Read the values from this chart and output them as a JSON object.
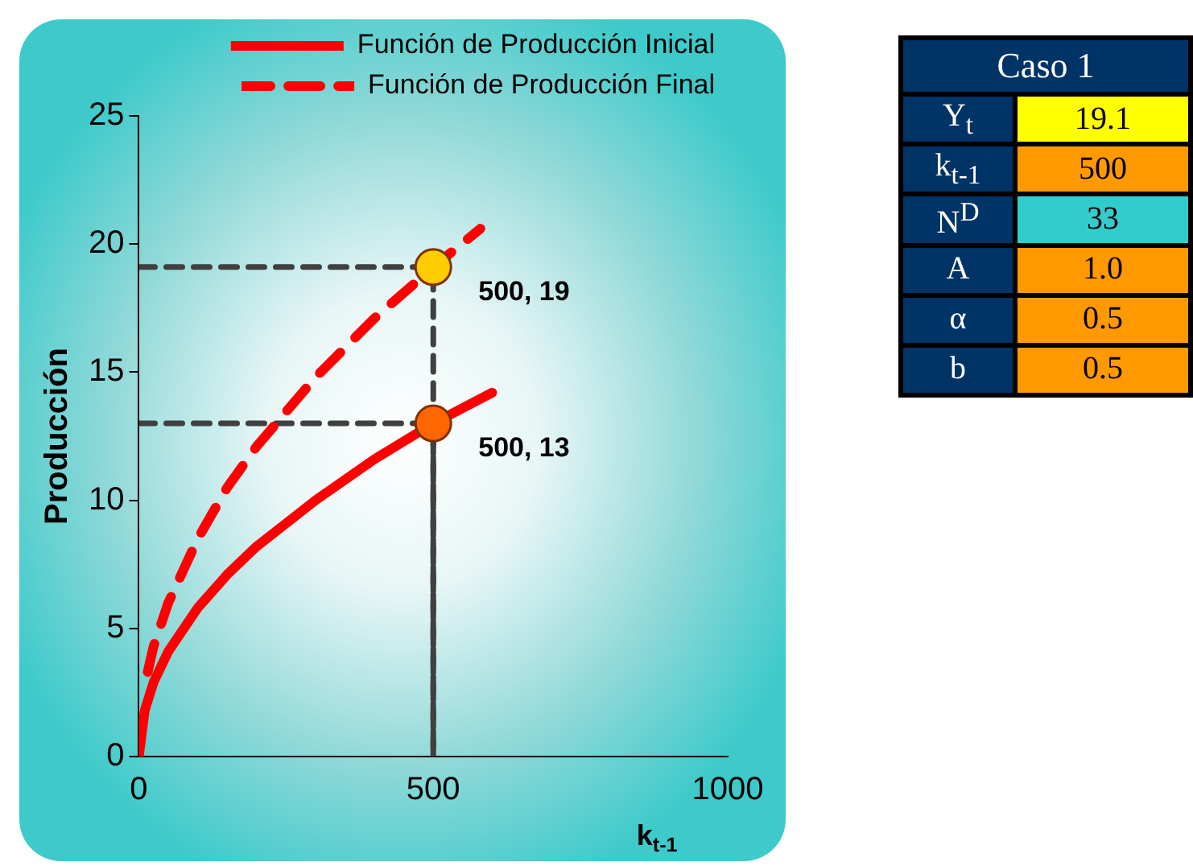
{
  "chart_data": [
    {
      "type": "line",
      "xlabel": "k$_{t-1}$",
      "ylabel": "Producción",
      "xlim": [
        0,
        1000
      ],
      "ylim": [
        0,
        25
      ],
      "xticks": [
        0,
        500,
        1000
      ],
      "yticks": [
        0,
        5,
        10,
        15,
        20,
        25
      ],
      "grid": false,
      "legend": "top right",
      "series": [
        {
          "name": "Función de Producción Inicial",
          "type": "line",
          "color": "#ff0000",
          "line_style": "solid",
          "marker": "none",
          "x": [
            0,
            10,
            25,
            50,
            100,
            150,
            200,
            300,
            400,
            500,
            600
          ],
          "values": [
            0,
            1.8,
            2.9,
            4.1,
            5.8,
            7.1,
            8.2,
            10.0,
            11.6,
            13.0,
            14.2
          ]
        },
        {
          "name": "Función de Producción Final",
          "type": "line",
          "color": "#ff0000",
          "line_style": "dashed",
          "marker": "none",
          "x": [
            15,
            25,
            50,
            100,
            150,
            200,
            300,
            400,
            500,
            580
          ],
          "values": [
            3.3,
            4.3,
            6.0,
            8.5,
            10.5,
            12.1,
            14.8,
            17.1,
            19.1,
            20.6
          ]
        },
        {
          "type": "line",
          "color": "#404040",
          "line_style": "dashed",
          "marker": "none",
          "x": [
            0,
            500,
            500
          ],
          "values": [
            19.1,
            19.1,
            0
          ]
        },
        {
          "type": "line",
          "color": "#404040",
          "line_style": "dashed",
          "marker": "none",
          "x": [
            0,
            500,
            500
          ],
          "values": [
            13,
            13,
            0
          ]
        },
        {
          "type": "scatter",
          "color": "#ffcc00",
          "marker": "circle",
          "x": [
            500
          ],
          "values": [
            19.1
          ]
        },
        {
          "type": "scatter",
          "color": "#ff6600",
          "marker": "circle",
          "x": [
            500
          ],
          "values": [
            13
          ]
        }
      ],
      "annotations": [
        {
          "text": "500, 19",
          "x": 500,
          "y": 19.1
        },
        {
          "text": "500, 13",
          "x": 500,
          "y": 13
        }
      ]
    },
    {
      "type": "other",
      "title": "Caso 1",
      "annotations": [
        "Y$_{t}$",
        "19.1",
        "k$_{t-1}$",
        "500",
        "N$^{D}$",
        "33",
        "A",
        "1.0",
        "α",
        "0.5",
        "b",
        "0.5"
      ],
      "colors": [
        "#ffff00",
        "#ff9900",
        "#33cccc",
        "#ff9900",
        "#ff9900",
        "#ff9900"
      ]
    }
  ]
}
